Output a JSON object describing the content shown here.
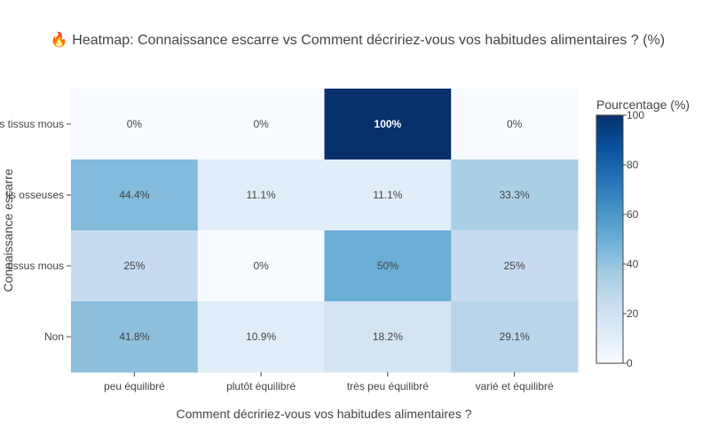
{
  "chart_data": {
    "type": "heatmap",
    "title": "🔥 Heatmap: Connaissance escarre vs Comment décririez-vous vos habitudes alimentaires ? (%)",
    "xlabel": "Comment décririez-vous vos habitudes alimentaires ?",
    "ylabel": "Connaissance escarre",
    "x_categories": [
      "peu équilibré",
      "plutôt équilibré",
      "très peu équilibré",
      "varié et équilibré"
    ],
    "y_categories_top_to_bottom": [
      "s tissus mous",
      "lis osseuses",
      "tissus mous",
      "Non"
    ],
    "values": [
      [
        0,
        0,
        100,
        0
      ],
      [
        44.4,
        11.1,
        11.1,
        33.3
      ],
      [
        25,
        0,
        50,
        25
      ],
      [
        41.8,
        10.9,
        18.2,
        29.1
      ]
    ],
    "cell_labels": [
      [
        "0%",
        "0%",
        "100%",
        "0%"
      ],
      [
        "44.4%",
        "11.1%",
        "11.1%",
        "33.3%"
      ],
      [
        "25%",
        "0%",
        "50%",
        "25%"
      ],
      [
        "41.8%",
        "10.9%",
        "18.2%",
        "29.1%"
      ]
    ],
    "colorbar": {
      "title": "Pourcentage (%)",
      "range": [
        0,
        100
      ],
      "ticks": [
        "0",
        "20",
        "40",
        "60",
        "80",
        "100"
      ]
    },
    "colorscale": "Blues",
    "colors": {
      "low": "#f7fbff",
      "high": "#08306b",
      "text": "#444444"
    }
  }
}
